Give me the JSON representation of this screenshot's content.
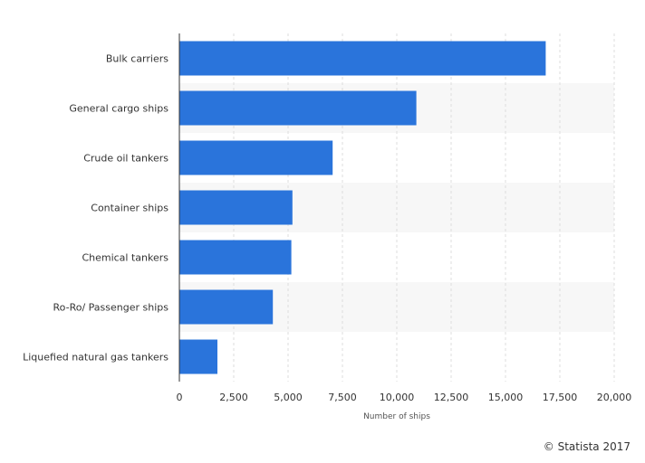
{
  "chart_data": {
    "type": "bar",
    "orientation": "horizontal",
    "categories": [
      "Bulk carriers",
      "General cargo ships",
      "Crude oil tankers",
      "Container ships",
      "Chemical tankers",
      "Ro-Ro/ Passenger ships",
      "Liquefied natural gas tankers"
    ],
    "values": [
      16850,
      10900,
      7050,
      5200,
      5150,
      4300,
      1750
    ],
    "xlabel": "Number of ships",
    "ylabel": "",
    "xlim": [
      0,
      20000
    ],
    "ticks": [
      "0",
      "2,500",
      "5,000",
      "7,500",
      "10,000",
      "12,500",
      "15,000",
      "17,500",
      "20,000"
    ],
    "bar_color": "#2a74db",
    "band_color": "#f7f7f7",
    "grid": "vertical dashed",
    "legend": "none"
  },
  "credit": "© Statista 2017"
}
